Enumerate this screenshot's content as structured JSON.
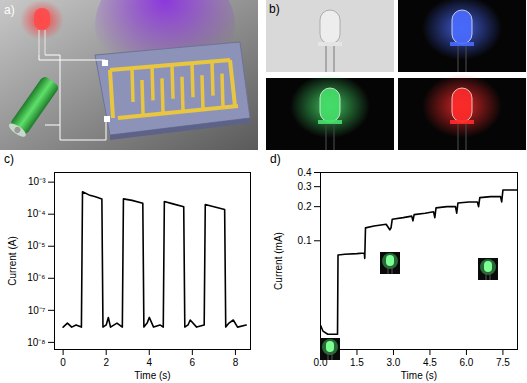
{
  "panels": [
    {
      "label": "a)",
      "type": "diagram"
    },
    {
      "label": "b)",
      "type": "photos",
      "colors": [
        "#d9d9d9",
        "#4a6bff",
        "#46e06a",
        "#ff2b2b"
      ]
    }
  ],
  "chart_data": [
    {
      "type": "line",
      "title": "c)",
      "x_label": "Time (s)",
      "y_label": "Current (A)",
      "log": "y",
      "color": "#000000",
      "xlim": [
        -0.4,
        8.7
      ],
      "xticks": [
        0,
        2,
        4,
        6,
        8
      ],
      "ylim": [
        6e-09,
        0.002
      ],
      "yticks": [
        {
          "value": 1e-08,
          "label": "10⁻⁸"
        },
        {
          "value": 1e-07,
          "label": "10⁻⁷"
        },
        {
          "value": 1e-06,
          "label": "10⁻⁶"
        },
        {
          "value": 1e-05,
          "label": "10⁻⁵"
        },
        {
          "value": 0.0001,
          "label": "10⁻⁴"
        },
        {
          "value": 0.001,
          "label": "10⁻³"
        }
      ],
      "x": [
        0,
        0.2,
        0.4,
        0.6,
        0.85,
        0.9,
        1.2,
        1.5,
        1.8,
        1.85,
        2.0,
        2.1,
        2.2,
        2.5,
        2.75,
        2.8,
        3.2,
        3.7,
        3.75,
        3.9,
        4.0,
        4.2,
        4.5,
        4.65,
        4.7,
        5.1,
        5.6,
        5.65,
        5.8,
        5.9,
        6.2,
        6.55,
        6.6,
        7.0,
        7.5,
        7.55,
        7.7,
        7.9,
        8.1,
        8.5
      ],
      "values": [
        3e-08,
        4e-08,
        3e-08,
        3.5e-08,
        3e-08,
        0.0005,
        0.0004,
        0.00035,
        0.0003,
        3e-08,
        3.5e-08,
        6e-08,
        3e-08,
        4e-08,
        3e-08,
        0.0003,
        0.00027,
        0.00022,
        3e-08,
        4e-08,
        6e-08,
        3e-08,
        3.5e-08,
        3e-08,
        0.00025,
        0.00021,
        0.00017,
        3e-08,
        3.5e-08,
        5e-08,
        3e-08,
        3.5e-08,
        0.0002,
        0.00017,
        0.00014,
        3e-08,
        4e-08,
        5e-08,
        3e-08,
        3.5e-08
      ]
    },
    {
      "type": "line",
      "title": "d)",
      "x_label": "Time (s)",
      "y_label": "Current (mA)",
      "log": "y",
      "color": "#000000",
      "xlim": [
        0,
        8.1
      ],
      "xticks": [
        {
          "value": 0,
          "label": "0.0"
        },
        1.5,
        {
          "value": 3,
          "label": "3.0"
        },
        4.5,
        {
          "value": 6,
          "label": "6.0"
        },
        7.5
      ],
      "ylim": [
        0.011,
        0.4
      ],
      "yticks": [
        0.1,
        0.2,
        0.3,
        0.4
      ],
      "x": [
        0,
        0.1,
        0.3,
        0.5,
        0.7,
        0.72,
        1.0,
        1.5,
        1.8,
        1.82,
        1.85,
        2.2,
        2.7,
        2.85,
        2.9,
        2.95,
        3.4,
        3.75,
        3.8,
        3.85,
        4.3,
        4.65,
        4.7,
        4.75,
        5.2,
        5.55,
        5.6,
        5.65,
        6.1,
        6.45,
        6.5,
        6.55,
        7.0,
        7.4,
        7.45,
        7.5,
        8.1
      ],
      "values": [
        0.018,
        0.016,
        0.015,
        0.015,
        0.015,
        0.075,
        0.076,
        0.077,
        0.078,
        0.07,
        0.13,
        0.135,
        0.14,
        0.125,
        0.13,
        0.155,
        0.16,
        0.165,
        0.15,
        0.17,
        0.175,
        0.18,
        0.16,
        0.195,
        0.2,
        0.2,
        0.175,
        0.215,
        0.22,
        0.22,
        0.2,
        0.24,
        0.245,
        0.245,
        0.22,
        0.28,
        0.28
      ]
    }
  ]
}
